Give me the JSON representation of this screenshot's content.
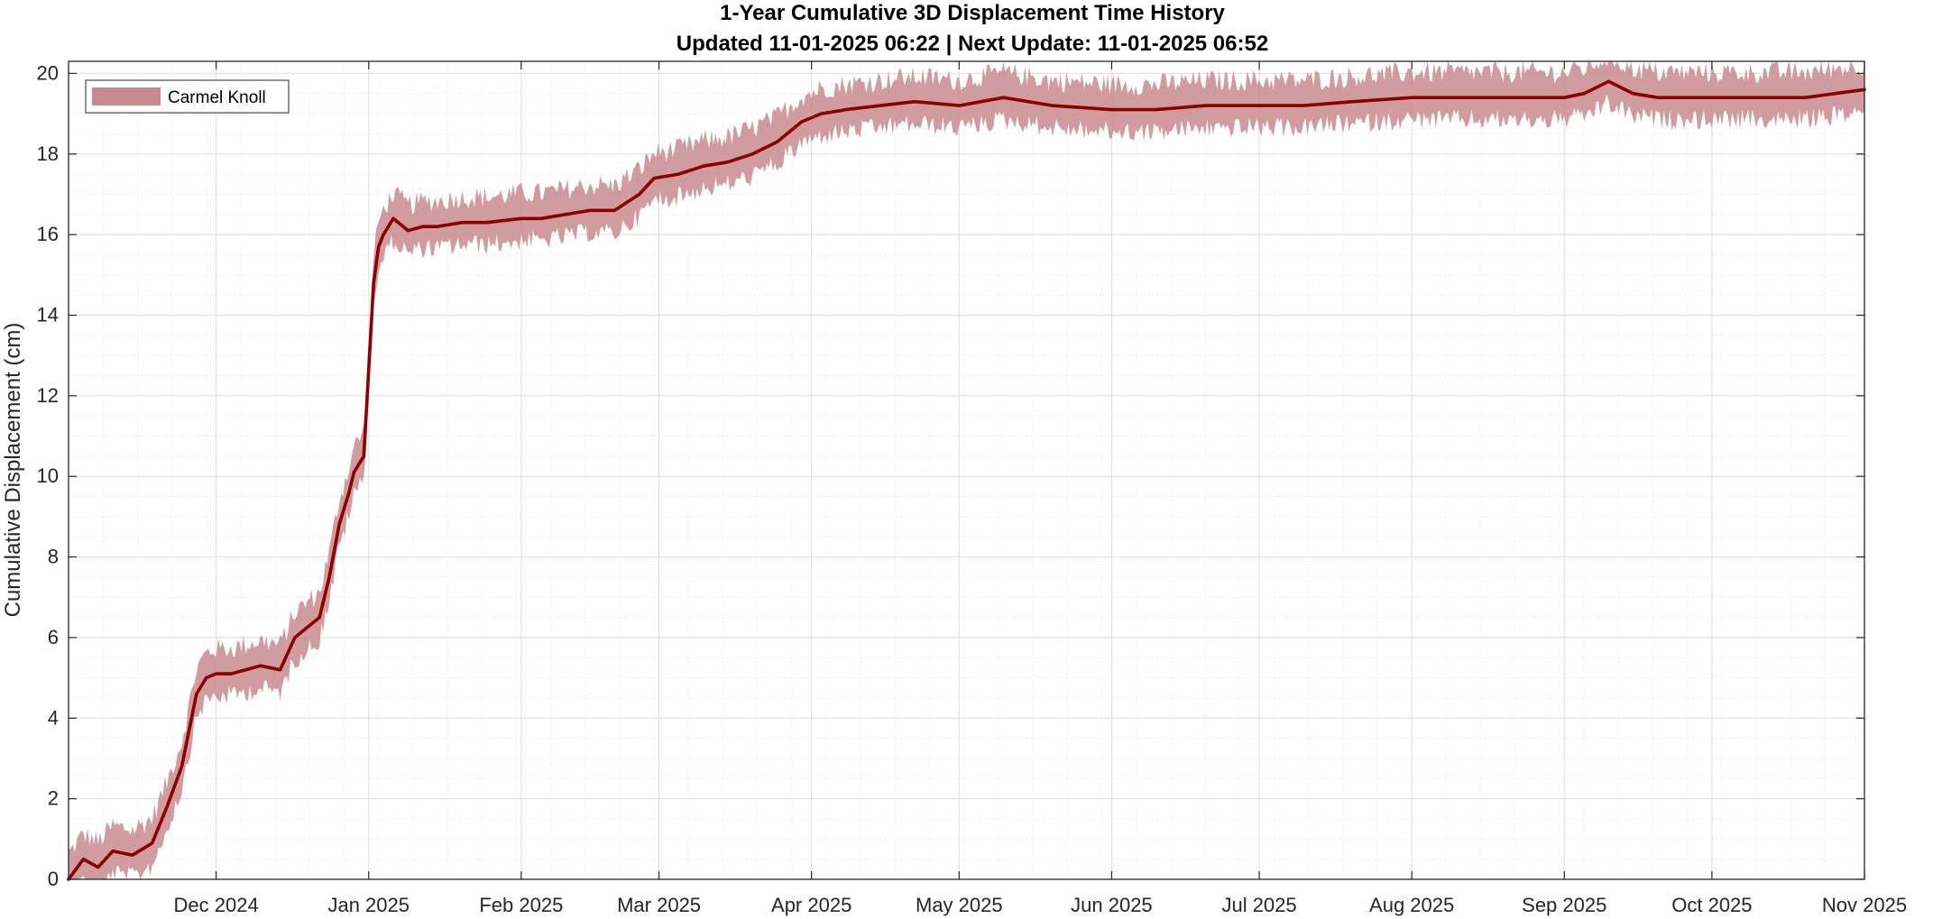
{
  "chart_data": {
    "type": "area",
    "title": "1-Year Cumulative 3D Displacement Time History",
    "subtitle": "Updated 11-01-2025 06:22  |  Next Update: 11-01-2025 06:52",
    "xlabel": "",
    "ylabel": "Cumulative Displacement (cm)",
    "xlim": [
      "2024-11-01",
      "2025-11-01"
    ],
    "ylim": [
      0,
      20.3
    ],
    "x_ticks": [
      {
        "date": "2024-12-01",
        "label": "Dec 2024"
      },
      {
        "date": "2025-01-01",
        "label": "Jan 2025"
      },
      {
        "date": "2025-02-01",
        "label": "Feb 2025"
      },
      {
        "date": "2025-03-01",
        "label": "Mar 2025"
      },
      {
        "date": "2025-04-01",
        "label": "Apr 2025"
      },
      {
        "date": "2025-05-01",
        "label": "May 2025"
      },
      {
        "date": "2025-06-01",
        "label": "Jun 2025"
      },
      {
        "date": "2025-07-01",
        "label": "Jul 2025"
      },
      {
        "date": "2025-08-01",
        "label": "Aug 2025"
      },
      {
        "date": "2025-09-01",
        "label": "Sep 2025"
      },
      {
        "date": "2025-10-01",
        "label": "Oct 2025"
      },
      {
        "date": "2025-11-01",
        "label": "Nov 2025"
      }
    ],
    "y_ticks": [
      0,
      2,
      4,
      6,
      8,
      10,
      12,
      14,
      16,
      18,
      20
    ],
    "grid": true,
    "minor_grid": true,
    "legend_position": "top-left",
    "colors": {
      "line": "#8b0000",
      "band": "#c98b8e"
    },
    "series": [
      {
        "name": "Carmel Knoll",
        "x": [
          "2024-11-01",
          "2024-11-04",
          "2024-11-07",
          "2024-11-10",
          "2024-11-14",
          "2024-11-18",
          "2024-11-21",
          "2024-11-24",
          "2024-11-27",
          "2024-11-29",
          "2024-12-01",
          "2024-12-04",
          "2024-12-07",
          "2024-12-10",
          "2024-12-14",
          "2024-12-17",
          "2024-12-20",
          "2024-12-22",
          "2024-12-24",
          "2024-12-26",
          "2024-12-28",
          "2024-12-29",
          "2024-12-31",
          "2025-01-02",
          "2025-01-03",
          "2025-01-04",
          "2025-01-06",
          "2025-01-07",
          "2025-01-09",
          "2025-01-12",
          "2025-01-15",
          "2025-01-20",
          "2025-01-25",
          "2025-02-01",
          "2025-02-05",
          "2025-02-10",
          "2025-02-15",
          "2025-02-20",
          "2025-02-25",
          "2025-02-28",
          "2025-03-05",
          "2025-03-10",
          "2025-03-15",
          "2025-03-20",
          "2025-03-25",
          "2025-03-30",
          "2025-04-03",
          "2025-04-08",
          "2025-04-15",
          "2025-04-22",
          "2025-05-01",
          "2025-05-10",
          "2025-05-20",
          "2025-06-01",
          "2025-06-10",
          "2025-06-20",
          "2025-07-01",
          "2025-07-10",
          "2025-07-20",
          "2025-08-01",
          "2025-08-10",
          "2025-08-20",
          "2025-09-01",
          "2025-09-05",
          "2025-09-10",
          "2025-09-15",
          "2025-09-20",
          "2025-10-01",
          "2025-10-10",
          "2025-10-20",
          "2025-11-01"
        ],
        "y": [
          0.0,
          0.5,
          0.3,
          0.7,
          0.6,
          0.9,
          1.8,
          2.8,
          4.6,
          5.0,
          5.1,
          5.1,
          5.2,
          5.3,
          5.2,
          6.0,
          6.3,
          6.5,
          7.5,
          8.8,
          9.6,
          10.1,
          10.5,
          14.8,
          15.7,
          16.0,
          16.4,
          16.3,
          16.1,
          16.2,
          16.2,
          16.3,
          16.3,
          16.4,
          16.4,
          16.5,
          16.6,
          16.6,
          17.0,
          17.4,
          17.5,
          17.7,
          17.8,
          18.0,
          18.3,
          18.8,
          19.0,
          19.1,
          19.2,
          19.3,
          19.2,
          19.4,
          19.2,
          19.1,
          19.1,
          19.2,
          19.2,
          19.2,
          19.3,
          19.4,
          19.4,
          19.4,
          19.4,
          19.5,
          19.8,
          19.5,
          19.4,
          19.4,
          19.4,
          19.4,
          19.6
        ]
      }
    ]
  }
}
